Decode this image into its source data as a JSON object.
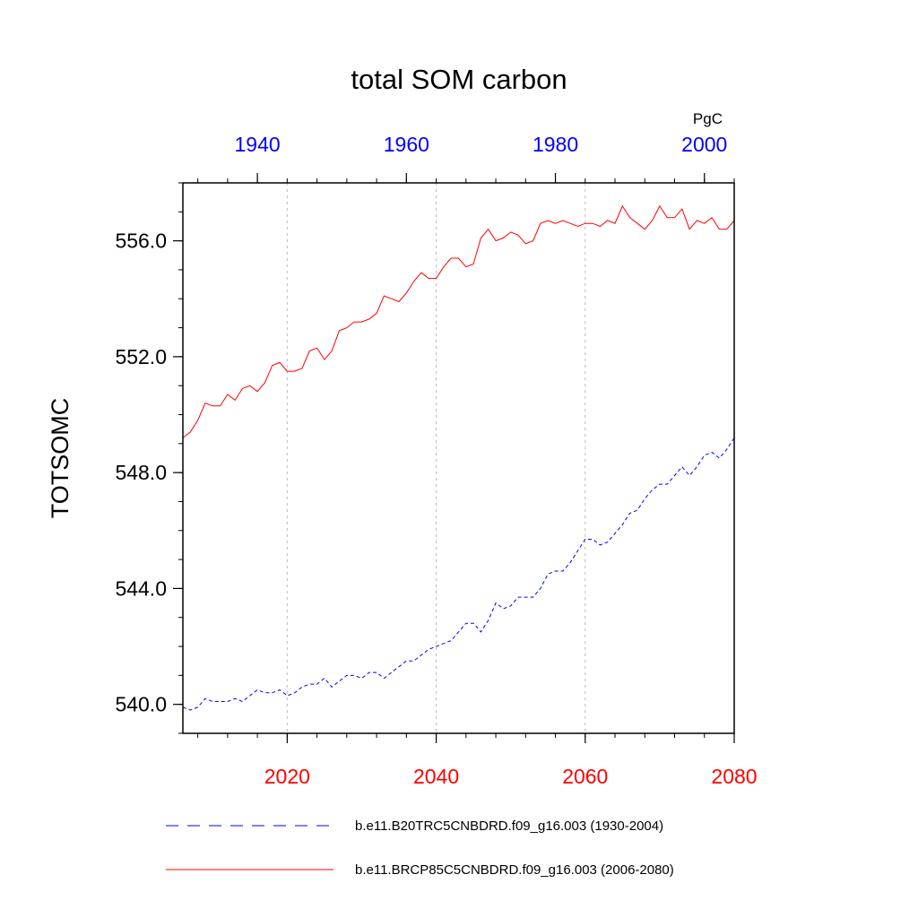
{
  "chart_data": {
    "type": "line",
    "title": "total SOM carbon",
    "units": "PgC",
    "ylabel": "TOTSOMC",
    "ylim": [
      539,
      558
    ],
    "yticks": [
      540.0,
      544.0,
      548.0,
      552.0,
      556.0
    ],
    "ytick_labels": [
      "540.0",
      "544.0",
      "548.0",
      "552.0",
      "556.0"
    ],
    "x_top": {
      "range": [
        1930,
        2004
      ],
      "ticks": [
        1940,
        1960,
        1980,
        2000
      ],
      "labels": [
        "1940",
        "1960",
        "1980",
        "2000"
      ],
      "color": "#0000ff"
    },
    "x_bottom": {
      "range": [
        2006,
        2080
      ],
      "ticks": [
        2020,
        2040,
        2060,
        2080
      ],
      "labels": [
        "2020",
        "2040",
        "2060",
        "2080"
      ],
      "color": "#ff0000"
    },
    "grid": "vertical dashed at bottom-axis major ticks",
    "legend_position": "bottom",
    "series": [
      {
        "name": "b.e11.B20TRC5CNBDRD.f09_g16.003 (1930-2004)",
        "axis": "top",
        "color": "#0000ff",
        "dash": "dashed",
        "x_start": 1930,
        "values": [
          539.9,
          539.8,
          539.9,
          540.2,
          540.1,
          540.1,
          540.1,
          540.2,
          540.1,
          540.3,
          540.5,
          540.4,
          540.4,
          540.5,
          540.3,
          540.4,
          540.6,
          540.7,
          540.7,
          540.9,
          540.6,
          540.8,
          541.0,
          541.0,
          540.9,
          541.1,
          541.1,
          540.9,
          541.1,
          541.3,
          541.5,
          541.5,
          541.7,
          541.9,
          542.0,
          542.1,
          542.2,
          542.5,
          542.8,
          542.8,
          542.5,
          542.9,
          543.5,
          543.3,
          543.4,
          543.7,
          543.7,
          543.7,
          544.0,
          544.5,
          544.6,
          544.6,
          544.9,
          545.3,
          545.7,
          545.7,
          545.5,
          545.6,
          545.9,
          546.2,
          546.6,
          546.7,
          547.1,
          547.4,
          547.6,
          547.6,
          547.9,
          548.2,
          547.9,
          548.2,
          548.6,
          548.7,
          548.5,
          548.8,
          549.2
        ]
      },
      {
        "name": "b.e11.BRCP85C5CNBDRD.f09_g16.003 (2006-2080)",
        "axis": "bottom",
        "color": "#ff0000",
        "dash": "solid",
        "x_start": 2006,
        "values": [
          549.2,
          549.4,
          549.8,
          550.4,
          550.3,
          550.3,
          550.7,
          550.5,
          550.9,
          551.0,
          550.8,
          551.1,
          551.7,
          551.8,
          551.5,
          551.5,
          551.6,
          552.2,
          552.3,
          551.9,
          552.2,
          552.9,
          553.0,
          553.2,
          553.2,
          553.3,
          553.5,
          554.1,
          554.0,
          553.9,
          554.2,
          554.6,
          554.9,
          554.7,
          554.7,
          555.1,
          555.4,
          555.4,
          555.1,
          555.2,
          556.1,
          556.4,
          556.0,
          556.1,
          556.3,
          556.2,
          555.9,
          556.0,
          556.6,
          556.7,
          556.6,
          556.7,
          556.6,
          556.5,
          556.6,
          556.6,
          556.5,
          556.7,
          556.6,
          557.2,
          556.8,
          556.6,
          556.4,
          556.7,
          557.2,
          556.8,
          556.8,
          557.1,
          556.4,
          556.7,
          556.6,
          556.8,
          556.4,
          556.4,
          556.7
        ]
      }
    ]
  }
}
